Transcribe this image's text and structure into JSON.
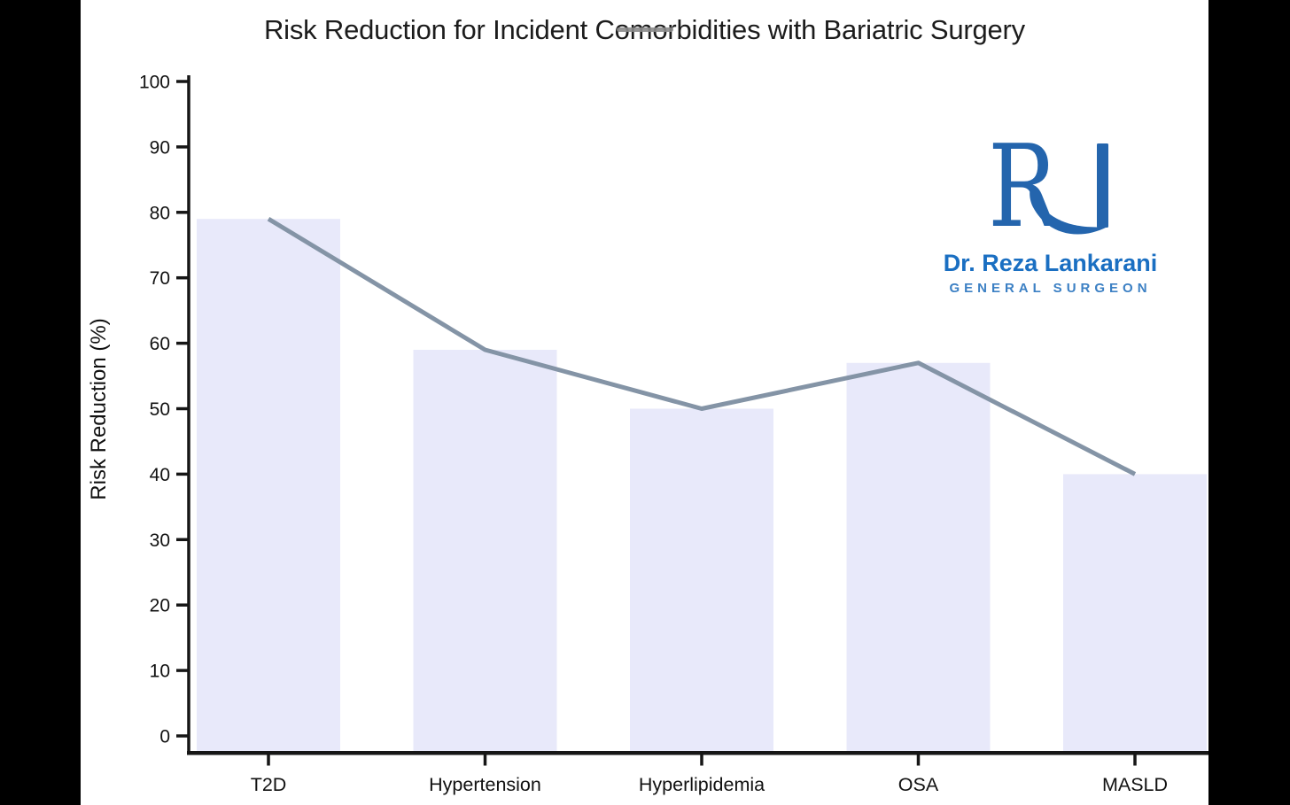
{
  "page": {
    "background": "#000000",
    "canvas_background": "#ffffff"
  },
  "chart_data": {
    "type": "bar",
    "title": "Risk Reduction for Incident Comorbidities with Bariatric Surgery",
    "categories": [
      "T2D",
      "Hypertension",
      "Hyperlipidemia",
      "OSA",
      "MASLD"
    ],
    "series": [
      {
        "name": "risk-reduction-bars",
        "type": "bar",
        "values": [
          79,
          59,
          50,
          57,
          40
        ]
      },
      {
        "name": "risk-reduction-trend-line",
        "type": "line",
        "values": [
          79,
          59,
          50,
          57,
          40
        ]
      }
    ],
    "xlabel": "",
    "ylabel": "Risk Reduction (%)",
    "ylim": [
      0,
      100
    ],
    "ytick_step": 10,
    "yticks": [
      0,
      10,
      20,
      30,
      40,
      50,
      60,
      70,
      80,
      90,
      100
    ],
    "grid": false,
    "legend": "none",
    "colors": {
      "bar_fill": "#e8e9fa",
      "line": "#8494a6",
      "axis": "#161616",
      "tick_label": "#111111",
      "title": "#1c1c1c"
    }
  },
  "title_overlay_dash": {
    "color": "#8b8b8b"
  },
  "logo": {
    "monogram": "RL",
    "monogram_letter": "R",
    "name": "Dr. Reza Lankarani",
    "subtitle": "GENERAL SURGEON",
    "colors": {
      "monogram": "#2465ad",
      "name": "#1a6fc2",
      "subtitle": "#3c80c4"
    }
  }
}
